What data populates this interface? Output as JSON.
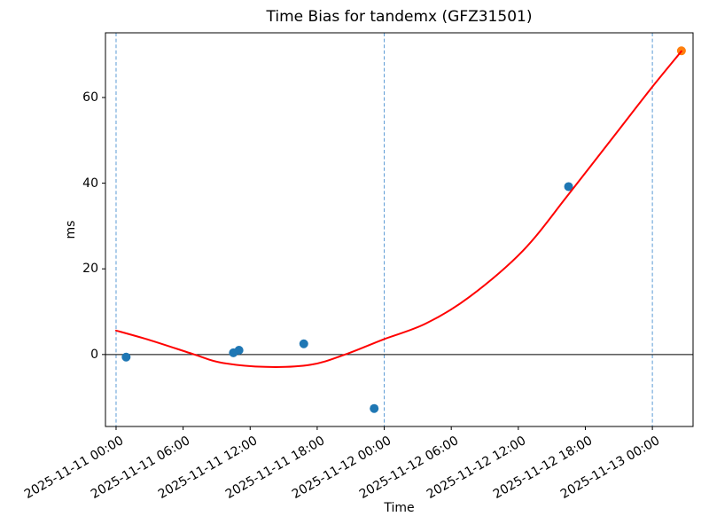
{
  "figure": {
    "title": "Time Bias for tandemx (GFZ31501)",
    "xlabel": "Time",
    "ylabel": "ms"
  },
  "chart_data": {
    "type": "scatter",
    "title": "Time Bias for tandemx (GFZ31501)",
    "xlabel": "Time",
    "ylabel": "ms",
    "x_unit": "hours since 2025-11-11 00:00",
    "xlim": [
      -0.95,
      51.64
    ],
    "ylim": [
      -16.8,
      75.1
    ],
    "grid": false,
    "legend": false,
    "x_ticks": [
      {
        "h": 0,
        "label": "2025-11-11 00:00"
      },
      {
        "h": 6,
        "label": "2025-11-11 06:00"
      },
      {
        "h": 12,
        "label": "2025-11-11 12:00"
      },
      {
        "h": 18,
        "label": "2025-11-11 18:00"
      },
      {
        "h": 24,
        "label": "2025-11-12 00:00"
      },
      {
        "h": 30,
        "label": "2025-11-12 06:00"
      },
      {
        "h": 36,
        "label": "2025-11-12 12:00"
      },
      {
        "h": 42,
        "label": "2025-11-12 18:00"
      },
      {
        "h": 48,
        "label": "2025-11-13 00:00"
      }
    ],
    "y_ticks": [
      {
        "v": 0,
        "label": "0"
      },
      {
        "v": 20,
        "label": "20"
      },
      {
        "v": 40,
        "label": "40"
      },
      {
        "v": 60,
        "label": "60"
      }
    ],
    "day_boundary_lines": {
      "hours": [
        0,
        24,
        48
      ],
      "color": "#5b9bd5",
      "style": "dashed",
      "width": 1
    },
    "zero_line": {
      "value": 0,
      "color": "#000000",
      "width": 1
    },
    "series": [
      {
        "name": "time-bias-observations",
        "type": "scatter",
        "color": "#1f77b4",
        "marker_radius": 5,
        "points": [
          {
            "time": "2025-11-11 00:54",
            "h": 0.9,
            "ms": -0.6
          },
          {
            "time": "2025-11-11 10:30",
            "h": 10.5,
            "ms": 0.4
          },
          {
            "time": "2025-11-11 11:00",
            "h": 11.0,
            "ms": 1.0
          },
          {
            "time": "2025-11-11 16:50",
            "h": 16.8,
            "ms": 2.5
          },
          {
            "time": "2025-11-11 23:06",
            "h": 23.1,
            "ms": -12.6
          },
          {
            "time": "2025-11-12 16:30",
            "h": 40.5,
            "ms": 39.2
          }
        ]
      },
      {
        "name": "latest-observation",
        "type": "scatter",
        "color": "#ff7f0e",
        "marker_radius": 5,
        "points": [
          {
            "time": "2025-11-13 02:36",
            "h": 50.6,
            "ms": 70.9
          }
        ]
      },
      {
        "name": "polynomial-fit",
        "type": "line",
        "color": "#ff0000",
        "line_width": 2,
        "points": [
          {
            "h": 0.0,
            "ms": 5.6
          },
          {
            "h": 3.1,
            "ms": 3.3
          },
          {
            "h": 7.0,
            "ms": 0.0
          },
          {
            "h": 9.4,
            "ms": -1.9
          },
          {
            "h": 13.4,
            "ms": -2.9
          },
          {
            "h": 17.4,
            "ms": -2.4
          },
          {
            "h": 20.5,
            "ms": 0.0
          },
          {
            "h": 23.9,
            "ms": 3.5
          },
          {
            "h": 27.7,
            "ms": 7.2
          },
          {
            "h": 31.6,
            "ms": 13.4
          },
          {
            "h": 36.4,
            "ms": 24.2
          },
          {
            "h": 40.5,
            "ms": 37.4
          },
          {
            "h": 45.1,
            "ms": 52.8
          },
          {
            "h": 48.0,
            "ms": 62.5
          },
          {
            "h": 50.6,
            "ms": 70.8
          }
        ]
      }
    ]
  }
}
